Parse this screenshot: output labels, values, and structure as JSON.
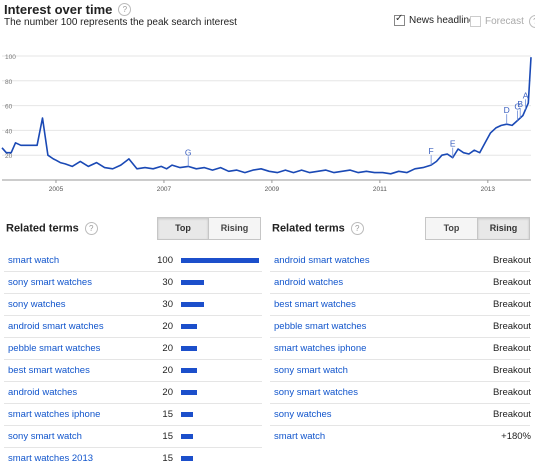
{
  "header": {
    "title": "Interest over time",
    "subtitle": "The number 100 represents the peak search interest",
    "news_label": "News headlines",
    "forecast_label": "Forecast",
    "help_glyph": "?"
  },
  "chart_data": {
    "type": "line",
    "xlabel": "",
    "ylabel": "",
    "ylim": [
      0,
      100
    ],
    "y_ticks": [
      20,
      40,
      60,
      80,
      100
    ],
    "x_tick_labels": [
      "2005",
      "2007",
      "2009",
      "2011",
      "2013"
    ],
    "x_tick_years": [
      2005,
      2007,
      2009,
      2011,
      2013
    ],
    "x_range": [
      2004.0,
      2013.8
    ],
    "line_color": "#1a49b5",
    "series": [
      {
        "x": [
          2004.0,
          2004.08,
          2004.17,
          2004.25,
          2004.35,
          2004.45,
          2004.55,
          2004.65,
          2004.75,
          2004.85,
          2004.95,
          2005.0,
          2005.08,
          2005.17,
          2005.3,
          2005.45,
          2005.6,
          2005.75,
          2005.9,
          2006.05,
          2006.2,
          2006.35,
          2006.5,
          2006.65,
          2006.8,
          2006.95,
          2007.05,
          2007.15,
          2007.3,
          2007.45,
          2007.6,
          2007.75,
          2007.9,
          2008.05,
          2008.2,
          2008.35,
          2008.5,
          2008.65,
          2008.8,
          2008.95,
          2009.1,
          2009.25,
          2009.4,
          2009.55,
          2009.7,
          2009.85,
          2010.0,
          2010.15,
          2010.3,
          2010.45,
          2010.6,
          2010.75,
          2010.9,
          2011.05,
          2011.2,
          2011.35,
          2011.5,
          2011.65,
          2011.8,
          2011.95,
          2012.05,
          2012.15,
          2012.25,
          2012.35,
          2012.45,
          2012.55,
          2012.65,
          2012.75,
          2012.85,
          2012.95,
          2013.05,
          2013.15,
          2013.25,
          2013.35,
          2013.45,
          2013.55,
          2013.65,
          2013.75,
          2013.8
        ],
        "y": [
          26,
          22,
          22,
          30,
          28,
          28,
          28,
          28,
          50,
          20,
          17,
          16,
          14,
          13,
          11,
          15,
          11,
          14,
          10,
          9,
          12,
          17,
          9,
          10,
          9,
          11,
          9,
          12,
          10,
          11,
          9,
          10,
          8,
          10,
          7,
          8,
          6,
          8,
          9,
          7,
          6,
          8,
          6,
          8,
          6,
          7,
          8,
          6,
          7,
          8,
          6,
          7,
          6,
          6,
          5,
          7,
          6,
          9,
          10,
          12,
          15,
          20,
          21,
          18,
          25,
          22,
          21,
          24,
          22,
          30,
          38,
          42,
          44,
          45,
          44,
          48,
          52,
          62,
          99
        ]
      }
    ],
    "news_markers": [
      {
        "label": "G",
        "x": 2007.45
      },
      {
        "label": "F",
        "x": 2011.95
      },
      {
        "label": "E",
        "x": 2012.35
      },
      {
        "label": "D",
        "x": 2013.35
      },
      {
        "label": "C",
        "x": 2013.55
      },
      {
        "label": "B",
        "x": 2013.6
      },
      {
        "label": "A",
        "x": 2013.7
      }
    ]
  },
  "related_left": {
    "title": "Related terms",
    "tabs": {
      "top": "Top",
      "rising": "Rising"
    },
    "active_tab": "top",
    "max_value": 100,
    "items": [
      {
        "term": "smart watch",
        "value": "100",
        "num": 100
      },
      {
        "term": "sony smart watches",
        "value": "30",
        "num": 30
      },
      {
        "term": "sony watches",
        "value": "30",
        "num": 30
      },
      {
        "term": "android smart watches",
        "value": "20",
        "num": 20
      },
      {
        "term": "pebble smart watches",
        "value": "20",
        "num": 20
      },
      {
        "term": "best smart watches",
        "value": "20",
        "num": 20
      },
      {
        "term": "android watches",
        "value": "20",
        "num": 20
      },
      {
        "term": "smart watches iphone",
        "value": "15",
        "num": 15
      },
      {
        "term": "sony smart watch",
        "value": "15",
        "num": 15
      },
      {
        "term": "smart watches 2013",
        "value": "15",
        "num": 15
      }
    ]
  },
  "related_right": {
    "title": "Related terms",
    "tabs": {
      "top": "Top",
      "rising": "Rising"
    },
    "active_tab": "rising",
    "items": [
      {
        "term": "android smart watches",
        "value": "Breakout"
      },
      {
        "term": "android watches",
        "value": "Breakout"
      },
      {
        "term": "best smart watches",
        "value": "Breakout"
      },
      {
        "term": "pebble smart watches",
        "value": "Breakout"
      },
      {
        "term": "smart watches iphone",
        "value": "Breakout"
      },
      {
        "term": "sony smart watch",
        "value": "Breakout"
      },
      {
        "term": "sony smart watches",
        "value": "Breakout"
      },
      {
        "term": "sony watches",
        "value": "Breakout"
      },
      {
        "term": "smart watch",
        "value": "+180%"
      }
    ]
  }
}
